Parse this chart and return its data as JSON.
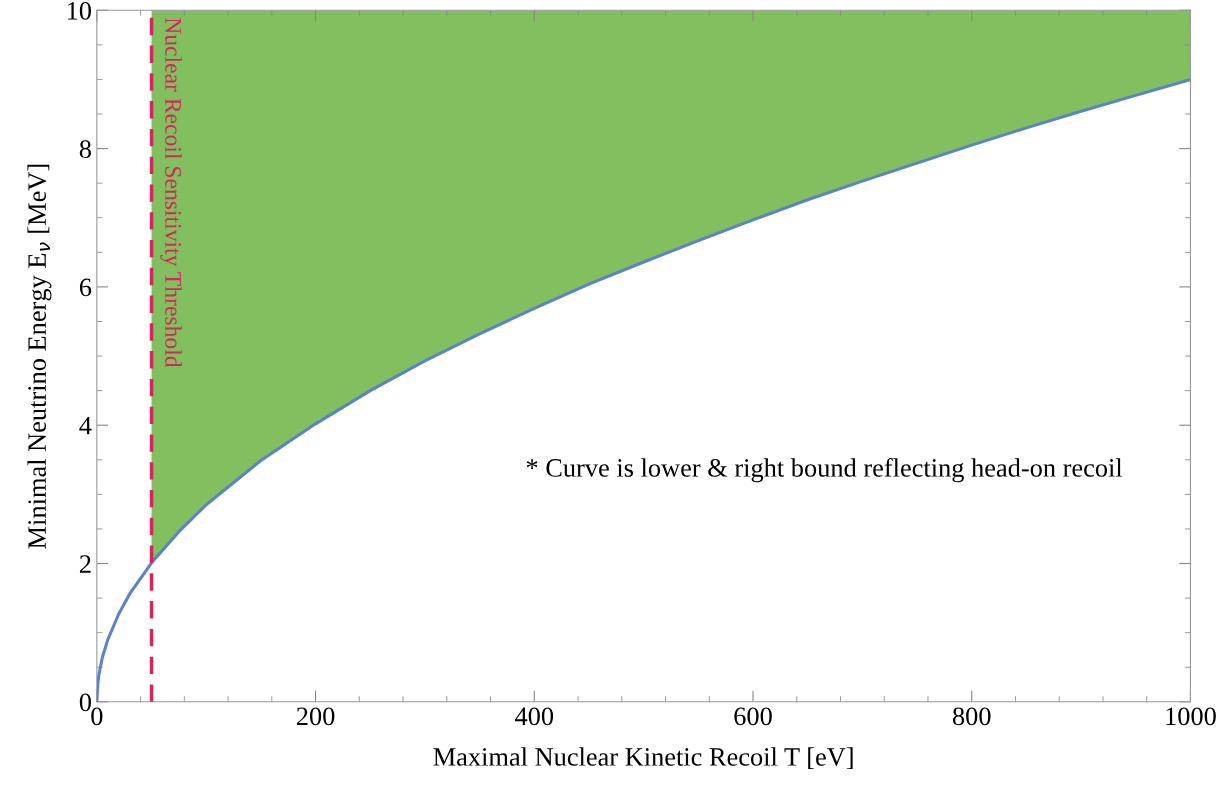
{
  "chart_data": {
    "type": "line",
    "xlabel": "Maximal Nuclear Kinetic Recoil T [eV]",
    "ylabel": "Minimal Neutrino Energy E$_{ν}$ [MeV]",
    "series": [
      {
        "color": "#5b84c4",
        "x": [
          0,
          1,
          2,
          5,
          10,
          20,
          30,
          50,
          75,
          100,
          150,
          200,
          250,
          300,
          350,
          400,
          450,
          500,
          550,
          600,
          650,
          700,
          750,
          800,
          850,
          900,
          950,
          1000
        ],
        "values": [
          0,
          0.28,
          0.4,
          0.64,
          0.9,
          1.27,
          1.56,
          2.01,
          2.46,
          2.85,
          3.49,
          4.02,
          4.5,
          4.93,
          5.32,
          5.69,
          6.04,
          6.36,
          6.67,
          6.97,
          7.26,
          7.53,
          7.79,
          8.05,
          8.3,
          8.54,
          8.77,
          9.0
        ],
        "lower": [
          null,
          null,
          null,
          null,
          null,
          null,
          null,
          2.01,
          2.46,
          2.85,
          3.49,
          4.02,
          4.5,
          4.93,
          5.32,
          5.69,
          6.04,
          6.36,
          6.67,
          6.97,
          7.26,
          7.53,
          7.79,
          8.05,
          8.3,
          8.54,
          8.77,
          9.0
        ],
        "upper": [
          null,
          null,
          null,
          null,
          null,
          null,
          null,
          10,
          10,
          10,
          10,
          10,
          10,
          10,
          10,
          10,
          10,
          10,
          10,
          10,
          10,
          10,
          10,
          10,
          10,
          10,
          10,
          10
        ]
      }
    ],
    "ref_lines": [
      {
        "axis": "x",
        "value": 50,
        "label": "Nuclear Recoil Sensitivity Threshold",
        "color": "#d6245e",
        "line_style": "dashed"
      }
    ],
    "annotations": [
      "* Curve is lower & right bound reflecting head-on recoil"
    ],
    "xlim": [
      0,
      1000
    ],
    "xticks": [
      0,
      200,
      400,
      600,
      800,
      1000
    ],
    "ylim": [
      0,
      10
    ],
    "yticks": [
      0,
      2,
      4,
      6,
      8,
      10
    ],
    "grid": false,
    "legend": false,
    "marker": "none",
    "line_style": "solid"
  }
}
